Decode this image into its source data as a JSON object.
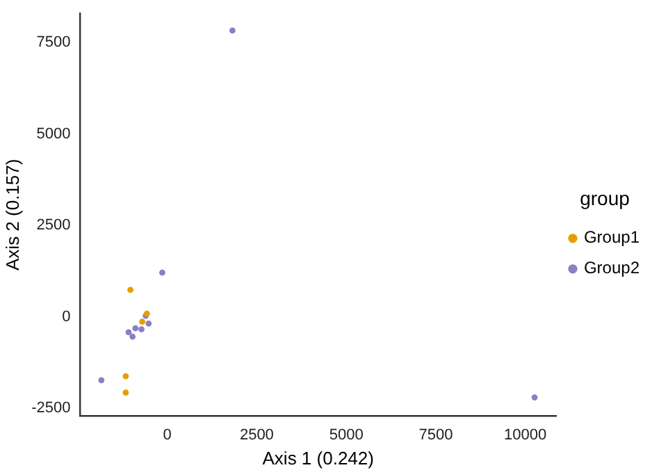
{
  "chart_data": {
    "type": "scatter",
    "xlabel": "Axis 1 (0.242)",
    "ylabel": "Axis 2 (0.157)",
    "legend_title": "group",
    "legend": "right",
    "grid": false,
    "marker": "circle",
    "xlim": [
      -2430,
      10860
    ],
    "ylim": [
      -2710,
      8300
    ],
    "xticks": [
      0,
      2500,
      5000,
      7500,
      10000
    ],
    "yticks": [
      -2500,
      0,
      2500,
      5000,
      7500
    ],
    "series": [
      {
        "name": "Group1",
        "color": "#e69f00",
        "x": [
          -1030,
          -570,
          -700,
          -1160,
          -1160
        ],
        "values": [
          740,
          90,
          -130,
          -1620,
          -2070
        ]
      },
      {
        "name": "Group2",
        "color": "#8c7fc4",
        "x": [
          1820,
          10260,
          -140,
          -600,
          -520,
          -890,
          -720,
          -1080,
          -970,
          -1840
        ],
        "values": [
          7830,
          -2200,
          1210,
          30,
          -180,
          -310,
          -340,
          -420,
          -540,
          -1730
        ]
      }
    ]
  }
}
